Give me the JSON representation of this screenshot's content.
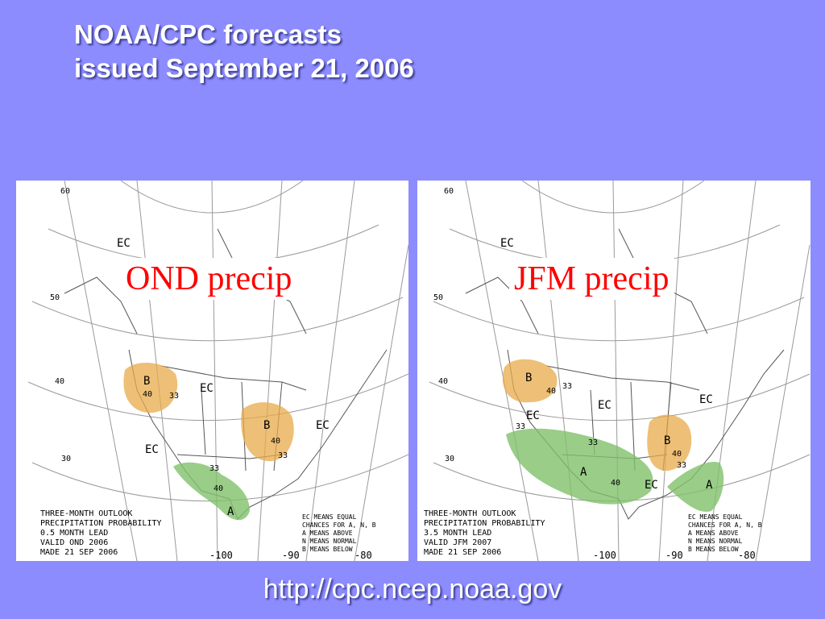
{
  "title": {
    "line1": "NOAA/CPC forecasts",
    "line2": "issued September 21, 2006"
  },
  "maps": [
    {
      "overlay": "OND precip",
      "lat_labels": [
        "60",
        "50",
        "40",
        "30"
      ],
      "lon_labels": [
        "-100",
        "-90",
        "-80"
      ],
      "ec_labels": [
        "EC",
        "EC",
        "EC",
        "EC"
      ],
      "category_labels": [
        "B",
        "B",
        "A"
      ],
      "contour_labels": [
        "40",
        "33",
        "40",
        "33",
        "33",
        "40"
      ],
      "outlook": [
        "THREE-MONTH OUTLOOK",
        "PRECIPITATION PROBABILITY",
        "0.5 MONTH LEAD",
        "VALID OND 2006",
        "MADE 21 SEP 2006"
      ],
      "legend": [
        "EC MEANS EQUAL",
        "CHANCES FOR A, N, B",
        "A MEANS ABOVE",
        "N MEANS NORMAL",
        "B MEANS BELOW"
      ],
      "colors": {
        "below": "#e8a94a",
        "above": "#7fc06a"
      }
    },
    {
      "overlay": "JFM precip",
      "lat_labels": [
        "60",
        "50",
        "40",
        "30"
      ],
      "lon_labels": [
        "-100",
        "-90",
        "-80"
      ],
      "ec_labels": [
        "EC",
        "EC",
        "EC",
        "EC",
        "EC"
      ],
      "category_labels": [
        "B",
        "B",
        "A",
        "A"
      ],
      "contour_labels": [
        "40",
        "33",
        "33",
        "33",
        "40",
        "40",
        "33"
      ],
      "outlook": [
        "THREE-MONTH OUTLOOK",
        "PRECIPITATION PROBABILITY",
        "3.5 MONTH LEAD",
        "VALID JFM 2007",
        "MADE 21 SEP 2006"
      ],
      "legend": [
        "EC MEANS EQUAL",
        "CHANCES FOR A, N, B",
        "A MEANS ABOVE",
        "N MEANS NORMAL",
        "B MEANS BELOW"
      ],
      "colors": {
        "below": "#e8a94a",
        "above": "#7fc06a"
      }
    }
  ],
  "footer": {
    "url": "http://cpc.ncep.noaa.gov"
  }
}
